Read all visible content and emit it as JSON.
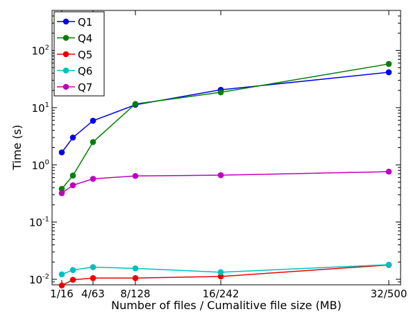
{
  "chart_data": {
    "type": "line",
    "xlabel": "Number of files / Cumalitive file size (MB)",
    "ylabel": "Time (s)",
    "yscale": "log",
    "ylim": [
      0.008,
      500
    ],
    "grid": false,
    "legend_position": "top-left",
    "x": [
      0.65,
      2,
      4,
      8,
      16,
      32
    ],
    "x_ticks": [
      {
        "value": 1,
        "label": "1/16"
      },
      {
        "value": 4,
        "label": "4/63"
      },
      {
        "value": 8,
        "label": "8/128"
      },
      {
        "value": 16,
        "label": "16/242"
      },
      {
        "value": 32,
        "label": "32/500"
      }
    ],
    "y_ticks": [
      {
        "value": 0.01,
        "base": "10",
        "exp": "-2"
      },
      {
        "value": 0.1,
        "base": "10",
        "exp": "-1"
      },
      {
        "value": 1,
        "base": "10",
        "exp": "0"
      },
      {
        "value": 10,
        "base": "10",
        "exp": "1"
      },
      {
        "value": 100,
        "base": "10",
        "exp": "2"
      }
    ],
    "series": [
      {
        "name": "Q1",
        "color": "#0000ee",
        "values": [
          1.65,
          3.0,
          5.9,
          11.2,
          20.5,
          41.5
        ]
      },
      {
        "name": "Q4",
        "color": "#007f00",
        "values": [
          0.38,
          0.65,
          2.5,
          11.6,
          18.5,
          58.0
        ]
      },
      {
        "name": "Q5",
        "color": "#ee0000",
        "values": [
          0.0078,
          0.0098,
          0.0105,
          0.0105,
          0.0112,
          0.0178
        ]
      },
      {
        "name": "Q6",
        "color": "#00bfbf",
        "values": [
          0.0122,
          0.0145,
          0.0163,
          0.0155,
          0.0133,
          0.018
        ]
      },
      {
        "name": "Q7",
        "color": "#bf00bf",
        "values": [
          0.32,
          0.44,
          0.57,
          0.64,
          0.66,
          0.76
        ]
      }
    ]
  }
}
